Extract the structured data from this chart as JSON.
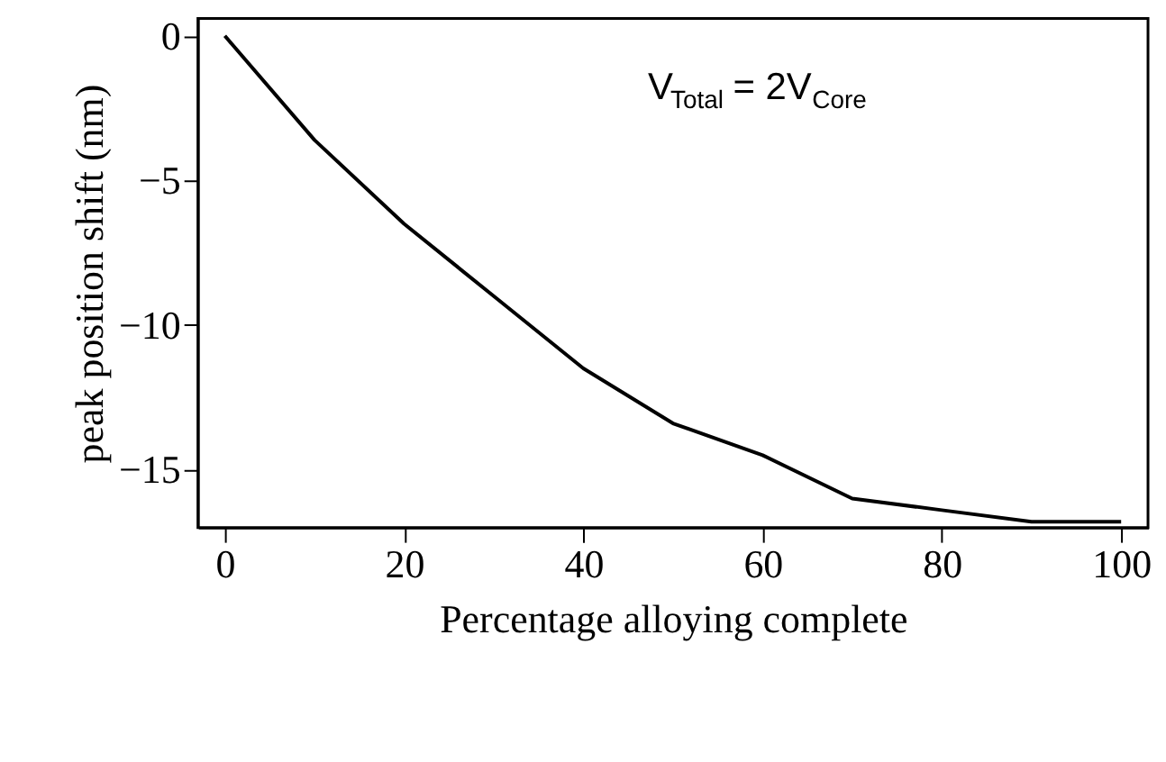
{
  "chart_data": {
    "type": "line",
    "xlabel": "Percentage alloying complete",
    "ylabel": "peak position shift (nm)",
    "x": [
      0,
      10,
      20,
      30,
      40,
      50,
      60,
      70,
      80,
      90,
      100
    ],
    "series": [
      {
        "color": "#000000",
        "values": [
          0,
          -3.6,
          -6.5,
          -9,
          -11.5,
          -13.4,
          -14.5,
          -16,
          -16.4,
          -16.8,
          -16.8
        ]
      }
    ],
    "xlim": [
      -3,
      103
    ],
    "ylim": [
      -17,
      0.6
    ],
    "xticks": [
      0,
      20,
      40,
      60,
      80,
      100
    ],
    "yticks": [
      0,
      -5,
      -10,
      -15
    ],
    "annotations": [
      "V$_{Total}$ = 2V$_{Core}$"
    ],
    "grid": false,
    "legend": false,
    "marker": "none",
    "line_style": "solid"
  }
}
